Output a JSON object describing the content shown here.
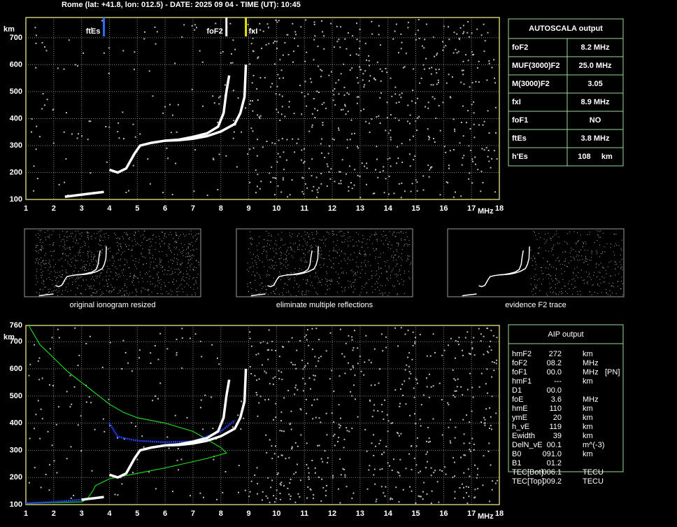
{
  "header": "Rome (lat: +41.8, lon: 012.5) - DATE: 2025 09 04 - TIME (UT): 10:45",
  "chart_data": [
    {
      "type": "ionogram",
      "x_label": "MHz",
      "y_label": "km",
      "xlim": [
        1,
        18
      ],
      "ylim": [
        100,
        775
      ],
      "xticks": [
        1,
        2,
        3,
        4,
        5,
        6,
        7,
        8,
        9,
        10,
        11,
        12,
        13,
        14,
        15,
        16,
        17,
        18
      ],
      "yticks": [
        100,
        200,
        300,
        400,
        500,
        600,
        700
      ],
      "grid": true,
      "markers": [
        {
          "label": "ftEs",
          "value": 3.8,
          "color": "#2a6cff",
          "side": "left"
        },
        {
          "label": "foF2",
          "value": 8.2,
          "color": "#ffffff",
          "side": "left"
        },
        {
          "label": "fxI",
          "value": 8.9,
          "color": "#e6e600",
          "side": "right"
        }
      ],
      "series": [
        {
          "color": "#ffffff",
          "x": [
            2.4,
            3.0,
            3.4,
            3.8
          ],
          "values": [
            110,
            118,
            123,
            128
          ]
        },
        {
          "color": "#ffffff",
          "x": [
            4.0,
            4.3,
            4.6,
            4.9,
            5.1,
            5.5,
            6.0,
            6.5,
            7.0,
            7.5,
            7.9,
            8.1,
            8.2,
            8.3
          ],
          "values": [
            210,
            200,
            215,
            270,
            300,
            310,
            318,
            322,
            332,
            345,
            370,
            420,
            500,
            560
          ]
        },
        {
          "color": "#ffffff",
          "x": [
            6.0,
            6.5,
            7.0,
            7.5,
            8.0,
            8.5,
            8.7,
            8.85,
            8.9
          ],
          "values": [
            318,
            320,
            325,
            335,
            352,
            380,
            420,
            480,
            600
          ]
        }
      ]
    },
    {
      "type": "ionogram",
      "x_label": "MHz",
      "y_label": "km",
      "xlim": [
        1,
        18
      ],
      "ylim": [
        100,
        760
      ],
      "xticks": [
        1,
        2,
        3,
        4,
        5,
        6,
        7,
        8,
        9,
        10,
        11,
        12,
        13,
        14,
        15,
        16,
        17,
        18
      ],
      "yticks": [
        100,
        200,
        300,
        400,
        500,
        600,
        700,
        760
      ],
      "grid": true,
      "series": [
        {
          "color": "#20d020",
          "x": [
            1.1,
            1.5,
            2.0,
            2.5,
            3.0,
            3.5,
            4.0,
            4.5,
            5.0,
            6.0,
            7.0,
            7.5,
            8.0,
            8.2,
            7.5,
            6.0,
            5.0,
            4.0,
            3.5,
            3.4,
            3.2,
            3.0,
            1.0
          ],
          "values": [
            760,
            690,
            640,
            590,
            550,
            510,
            470,
            440,
            420,
            400,
            370,
            340,
            310,
            290,
            270,
            235,
            215,
            195,
            170,
            150,
            120,
            110,
            105
          ]
        },
        {
          "color": "#2040ff",
          "x": [
            1.0,
            2.0,
            3.0,
            3.4
          ],
          "values": [
            105,
            110,
            118,
            125
          ]
        },
        {
          "color": "#2040ff",
          "x": [
            4.0,
            4.3,
            5.0,
            6.0,
            7.0,
            8.0,
            8.5
          ],
          "values": [
            400,
            350,
            335,
            330,
            333,
            370,
            410
          ]
        },
        {
          "color": "#ffffff",
          "x": [
            3.0,
            3.4,
            3.8
          ],
          "values": [
            118,
            123,
            128
          ]
        },
        {
          "color": "#ffffff",
          "x": [
            4.0,
            4.3,
            4.6,
            4.9,
            5.1,
            5.5,
            6.0,
            6.5,
            7.0,
            7.5,
            7.9,
            8.1,
            8.2,
            8.3
          ],
          "values": [
            210,
            200,
            215,
            270,
            300,
            310,
            318,
            322,
            332,
            345,
            370,
            420,
            500,
            560
          ]
        },
        {
          "color": "#ffffff",
          "x": [
            6.0,
            6.5,
            7.0,
            7.5,
            8.0,
            8.5,
            8.7,
            8.85,
            8.9
          ],
          "values": [
            318,
            320,
            325,
            335,
            352,
            380,
            420,
            480,
            600
          ]
        }
      ]
    }
  ],
  "thumbnails": [
    "original ionogram resized",
    "eliminate multiple reflections",
    "evidence F2 trace"
  ],
  "autoscala": {
    "title": "AUTOSCALA output",
    "rows": [
      {
        "name": "foF2",
        "value": "8.2 MHz",
        "color": "#ffffff"
      },
      {
        "name": "MUF(3000)F2",
        "value": "25.0 MHz",
        "color": "#ffffff"
      },
      {
        "name": "M(3000)F2",
        "value": "3.05",
        "color": "#ffffff"
      },
      {
        "name": "fxI",
        "value": "8.9 MHz",
        "color": "#e6e600"
      },
      {
        "name": "foF1",
        "value": "NO",
        "color": "#ff2020"
      },
      {
        "name": "ftEs",
        "value": "3.8 MHz",
        "color": "#3a7aff"
      },
      {
        "name": "h'Es",
        "value": "108     km",
        "color": "#ffffff"
      }
    ]
  },
  "aip": {
    "title": "AIP output",
    "rows": [
      [
        "hmF2",
        "272",
        "km"
      ],
      [
        "foF2",
        "08.2",
        "MHz"
      ],
      [
        "foF1",
        "00.0",
        "MHz",
        "[PN]"
      ],
      [
        "hmF1",
        "---",
        "km"
      ],
      [
        "D1",
        "00.0"
      ],
      [
        "foE",
        "3.6",
        "MHz"
      ],
      [
        "hmE",
        "110",
        "km"
      ],
      [
        "ymE",
        "20",
        "km"
      ],
      [
        "h_vE",
        "119",
        "km"
      ],
      [
        "Ewidth",
        "39",
        "km"
      ],
      [
        "DelN_vE",
        "00.1",
        "m^(-3)"
      ],
      [
        "B0",
        "091.0",
        "km"
      ],
      [
        "B1",
        "01.2"
      ],
      [
        "TEC[Bot]",
        "006.1",
        "TECU"
      ],
      [
        "TEC[Top]",
        "009.2",
        "TECU"
      ]
    ]
  }
}
